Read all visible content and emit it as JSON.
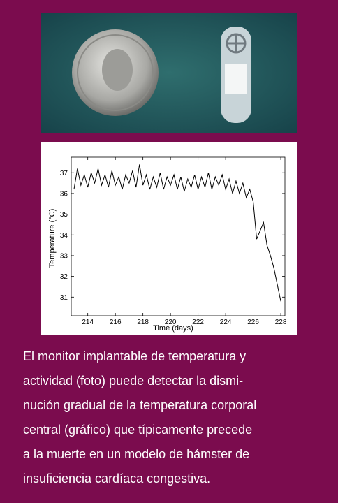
{
  "chart_data": {
    "type": "line",
    "xlabel": "Time (days)",
    "ylabel": "Temperature (°C)",
    "x": [
      213.0,
      213.25,
      213.5,
      213.75,
      214.0,
      214.25,
      214.5,
      214.75,
      215.0,
      215.25,
      215.5,
      215.75,
      216.0,
      216.25,
      216.5,
      216.75,
      217.0,
      217.25,
      217.5,
      217.75,
      218.0,
      218.25,
      218.5,
      218.75,
      219.0,
      219.25,
      219.5,
      219.75,
      220.0,
      220.25,
      220.5,
      220.75,
      221.0,
      221.25,
      221.5,
      221.75,
      222.0,
      222.25,
      222.5,
      222.75,
      223.0,
      223.25,
      223.5,
      223.75,
      224.0,
      224.25,
      224.5,
      224.75,
      225.0,
      225.25,
      225.5,
      225.75,
      226.0,
      226.25,
      226.5,
      226.75,
      227.0,
      227.25,
      227.5,
      227.75,
      228.0
    ],
    "series": [
      {
        "color": "#000000",
        "values": [
          36.2,
          37.2,
          36.4,
          36.9,
          36.3,
          37.0,
          36.5,
          37.2,
          36.4,
          36.9,
          36.3,
          37.1,
          36.4,
          36.8,
          36.2,
          36.9,
          36.5,
          37.1,
          36.3,
          37.4,
          36.4,
          36.9,
          36.2,
          36.8,
          36.3,
          37.0,
          36.2,
          36.8,
          36.4,
          36.9,
          36.2,
          36.8,
          36.1,
          36.7,
          36.3,
          36.9,
          36.2,
          36.8,
          36.3,
          37.0,
          36.2,
          36.8,
          36.4,
          36.9,
          36.2,
          36.7,
          36.0,
          36.6,
          36.0,
          36.5,
          35.8,
          36.2,
          35.6,
          33.8,
          34.2,
          34.6,
          33.5,
          33.0,
          32.4,
          31.6,
          30.8
        ]
      }
    ],
    "xlim": [
      212.8,
      228.3
    ],
    "ylim": [
      30.1,
      37.75
    ],
    "xticks": [
      214,
      216,
      218,
      220,
      222,
      224,
      226,
      228
    ],
    "yticks": [
      31,
      32,
      33,
      34,
      35,
      36,
      37
    ]
  },
  "caption": [
    "El monitor implantable de temperatura y",
    "actividad (foto) puede detectar la dismi-",
    "nución gradual de la temperatura corporal",
    "central (gráfico) que típicamente precede",
    "a la muerte en un modelo de hámster de",
    "insuficiencia cardíaca congestiva."
  ]
}
